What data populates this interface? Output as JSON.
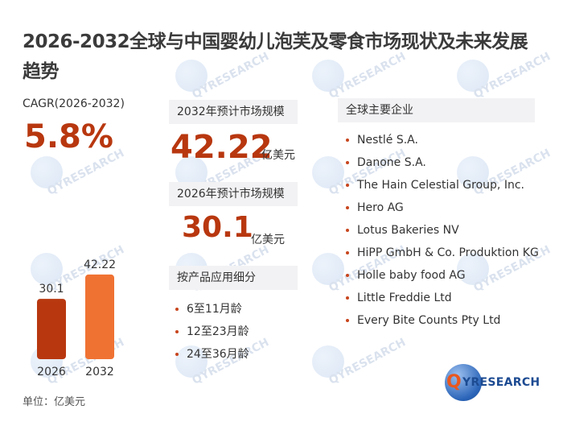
{
  "title": "2026-2032全球与中国婴幼儿泡芙及零食市场现状及未来发展趋势",
  "cagr": {
    "label": "CAGR(2026-2032)",
    "value": "5.8%"
  },
  "forecast_2032": {
    "label": "2032年预计市场规模",
    "value": "42.22",
    "unit": "亿美元"
  },
  "forecast_2026": {
    "label": "2026年预计市场规模",
    "value": "30.1",
    "unit": "亿美元"
  },
  "segments": {
    "label": "按产品应用细分",
    "items": [
      "6至11月龄",
      "12至23月龄",
      "24至36月龄"
    ]
  },
  "companies": {
    "label": "全球主要企业",
    "items": [
      "Nestlé S.A.",
      "Danone S.A.",
      "The Hain Celestial Group, Inc.",
      "Hero AG",
      "Lotus Bakeries NV",
      "HiPP GmbH & Co. Produktion KG",
      "Holle baby food AG",
      "Little Freddie Ltd",
      "Every Bite Counts Pty Ltd"
    ]
  },
  "unit_note": "单位：亿美元",
  "watermark_text": "QYRESEARCH",
  "logo": {
    "q": "Q",
    "text": "YRESEARCH"
  },
  "colors": {
    "accent": "#b8370f",
    "bar_2026": "#b8370f",
    "bar_2032": "#f07232",
    "label_bg": "#f2f2f4"
  },
  "chart_data": {
    "type": "bar",
    "categories": [
      "2026",
      "2032"
    ],
    "values": [
      30.1,
      42.22
    ],
    "value_labels": [
      "30.1",
      "42.22"
    ],
    "title": "",
    "xlabel": "",
    "ylabel": "",
    "ylim": [
      0,
      45
    ]
  }
}
